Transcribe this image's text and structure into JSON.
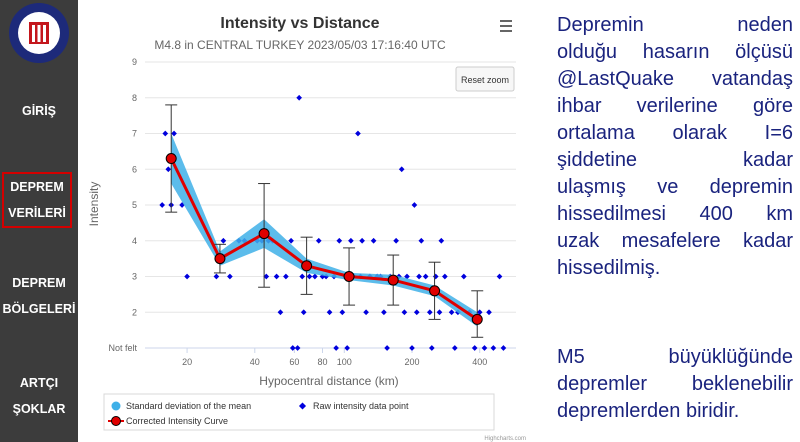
{
  "sidebar": {
    "items": [
      {
        "lines": [
          "GİRİŞ"
        ]
      },
      {
        "lines": [
          "DEPREM",
          "VERİLERİ"
        ],
        "active": true
      },
      {
        "lines": [
          "DEPREM",
          "BÖLGELERİ"
        ]
      },
      {
        "lines": [
          "ARTÇI",
          "ŞOKLAR"
        ]
      }
    ],
    "logo_colors": {
      "ring": "#1d2a7a",
      "inner": "#c4161c",
      "bg": "#ffffff"
    }
  },
  "chart_data": {
    "type": "line",
    "title": "Intensity vs Distance",
    "subtitle": "M4.8 in CENTRAL TURKEY 2023/05/03 17:16:40 UTC",
    "xlabel": "Hypocentral distance (km)",
    "ylabel": "Intensity",
    "xscale": "log",
    "xlim": [
      13,
      580
    ],
    "ylim": [
      1,
      9
    ],
    "x_ticks": [
      20,
      40,
      60,
      80,
      100,
      200,
      400
    ],
    "y_ticks": [
      {
        "value": 1,
        "label": "Not felt"
      },
      {
        "value": 2,
        "label": "2"
      },
      {
        "value": 3,
        "label": "3"
      },
      {
        "value": 4,
        "label": "4"
      },
      {
        "value": 5,
        "label": "5"
      },
      {
        "value": 6,
        "label": "6"
      },
      {
        "value": 7,
        "label": "7"
      },
      {
        "value": 8,
        "label": "8"
      },
      {
        "value": 9,
        "label": "9"
      }
    ],
    "reset_zoom_label": "Reset zoom",
    "menu_icon": "hamburger-icon",
    "credit": "Highcharts.com",
    "colors": {
      "curve": "#e00000",
      "band": "#3fb0e8",
      "raw": "#0000dd",
      "marker_fill": "#e00000"
    },
    "series": [
      {
        "name": "Corrected Intensity Curve",
        "x": [
          17,
          28,
          44,
          68,
          105,
          165,
          252,
          390
        ],
        "y": [
          6.3,
          3.5,
          4.2,
          3.3,
          3.0,
          2.9,
          2.6,
          1.8
        ],
        "err_low": [
          4.8,
          3.1,
          2.7,
          2.5,
          2.2,
          2.2,
          1.8,
          1.3
        ],
        "err_high": [
          7.8,
          3.9,
          5.6,
          4.1,
          3.8,
          3.6,
          3.4,
          2.6
        ]
      },
      {
        "name": "Standard deviation of the mean",
        "x": [
          17,
          28,
          44,
          68,
          105,
          165,
          252,
          390
        ],
        "low": [
          5.6,
          3.3,
          3.8,
          3.1,
          2.9,
          2.75,
          2.45,
          1.6
        ],
        "high": [
          7.0,
          3.7,
          4.6,
          3.5,
          3.1,
          3.05,
          2.75,
          2.0
        ]
      },
      {
        "name": "Raw intensity data point",
        "points": [
          [
            16,
            7
          ],
          [
            16.5,
            6
          ],
          [
            17,
            5
          ],
          [
            17.5,
            7
          ],
          [
            19,
            5
          ],
          [
            20,
            3
          ],
          [
            15.5,
            5
          ],
          [
            27,
            3
          ],
          [
            29,
            4
          ],
          [
            31,
            3
          ],
          [
            34,
            4
          ],
          [
            36,
            4
          ],
          [
            41,
            4
          ],
          [
            43,
            4
          ],
          [
            45,
            3
          ],
          [
            46,
            4
          ],
          [
            48,
            4
          ],
          [
            50,
            3
          ],
          [
            52,
            2
          ],
          [
            55,
            3
          ],
          [
            58,
            4
          ],
          [
            59,
            1
          ],
          [
            62,
            1
          ],
          [
            65,
            3
          ],
          [
            63,
            8
          ],
          [
            66,
            2
          ],
          [
            70,
            3
          ],
          [
            74,
            3
          ],
          [
            77,
            4
          ],
          [
            80,
            3
          ],
          [
            83,
            3
          ],
          [
            86,
            2
          ],
          [
            90,
            3
          ],
          [
            92,
            1
          ],
          [
            95,
            4
          ],
          [
            98,
            2
          ],
          [
            101,
            3
          ],
          [
            103,
            1
          ],
          [
            107,
            4
          ],
          [
            110,
            3
          ],
          [
            115,
            7
          ],
          [
            118,
            3
          ],
          [
            120,
            4
          ],
          [
            125,
            2
          ],
          [
            130,
            3
          ],
          [
            135,
            4
          ],
          [
            140,
            3
          ],
          [
            145,
            3
          ],
          [
            150,
            2
          ],
          [
            155,
            1
          ],
          [
            160,
            3
          ],
          [
            170,
            4
          ],
          [
            175,
            3
          ],
          [
            180,
            6
          ],
          [
            185,
            2
          ],
          [
            190,
            3
          ],
          [
            200,
            1
          ],
          [
            205,
            5
          ],
          [
            210,
            2
          ],
          [
            215,
            3
          ],
          [
            220,
            4
          ],
          [
            230,
            3
          ],
          [
            240,
            2
          ],
          [
            245,
            1
          ],
          [
            255,
            3
          ],
          [
            265,
            2
          ],
          [
            270,
            4
          ],
          [
            280,
            3
          ],
          [
            300,
            2
          ],
          [
            310,
            1
          ],
          [
            320,
            2
          ],
          [
            340,
            3
          ],
          [
            360,
            2
          ],
          [
            380,
            1
          ],
          [
            400,
            2
          ],
          [
            420,
            1
          ],
          [
            440,
            2
          ],
          [
            460,
            1
          ],
          [
            490,
            3
          ],
          [
            510,
            1
          ]
        ]
      }
    ],
    "legend": [
      {
        "name": "Standard deviation of the mean",
        "symbol": "band"
      },
      {
        "name": "Raw intensity data point",
        "symbol": "diamond"
      },
      {
        "name": "Corrected Intensity Curve",
        "symbol": "marker"
      }
    ]
  },
  "text": {
    "para1_lines": [
      "Depremin neden",
      "olduğu hasarın ölçüsü",
      "@LastQuake vatandaş",
      "ihbar verilerine göre",
      "ortalama olarak I=6",
      "şiddetine kadar",
      "ulaşmış ve depremin",
      "hissedilmesi 400 km",
      "uzak mesafelere kadar",
      "hissedilmiş."
    ],
    "para2_lines": [
      "M5 büyüklüğünde",
      "depremler beklenebilir",
      "depremlerden biridir."
    ]
  }
}
